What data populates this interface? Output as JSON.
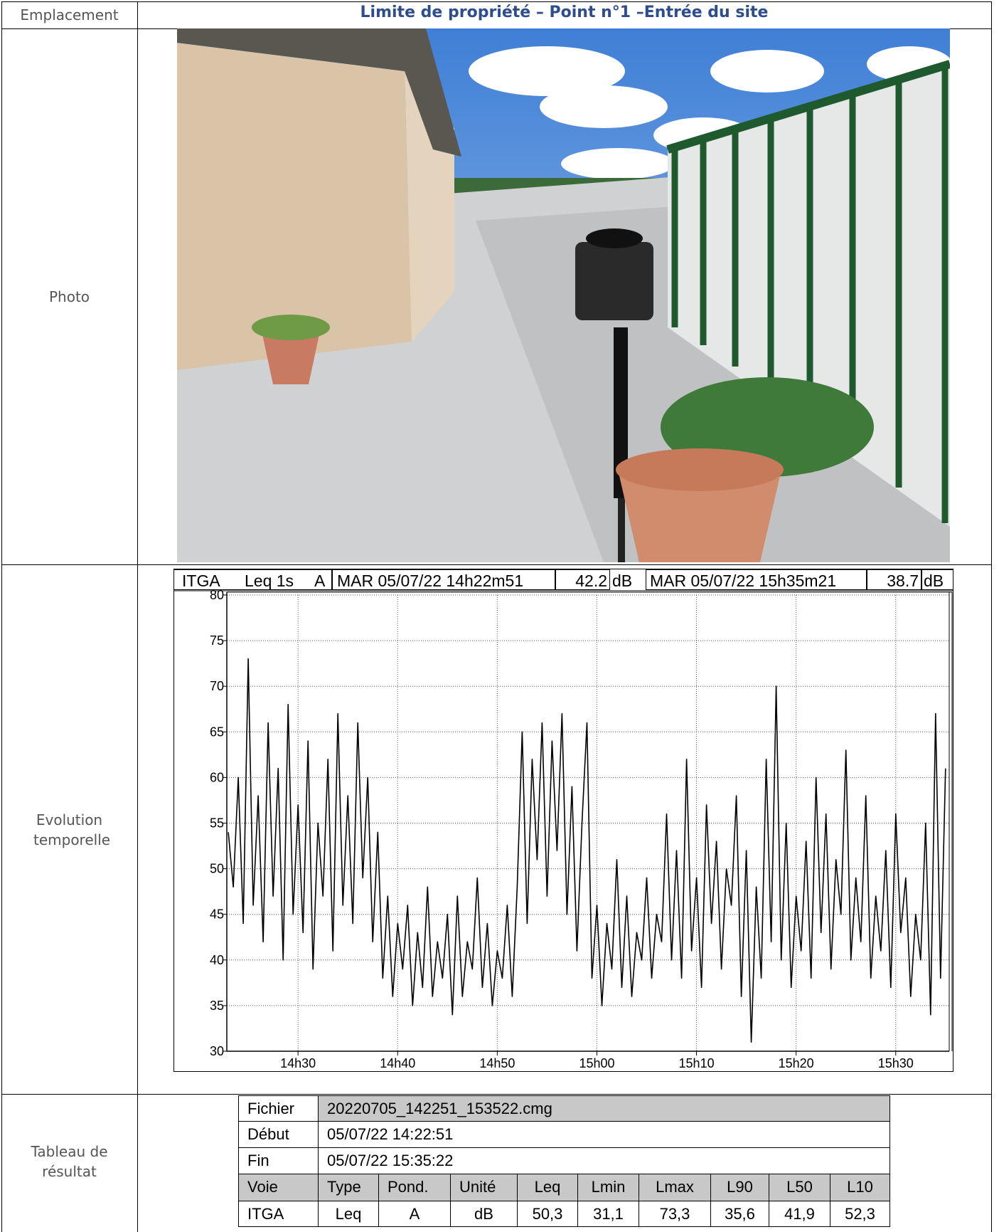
{
  "labels": {
    "location": "Emplacement",
    "photo": "Photo",
    "evolution": "Evolution temporelle",
    "results": "Tableau de résultat"
  },
  "title": "Limite de propriété – Point n°1 –Entrée du site",
  "chart_data": {
    "type": "line",
    "header": [
      "ITGA",
      "Leq 1s",
      "A",
      "MAR 05/07/22 14h22m51",
      "42.2",
      "dB",
      "MAR 05/07/22 15h35m21",
      "38.7",
      "dB"
    ],
    "color": "#000000",
    "xlim": [
      22.85,
      95.37
    ],
    "xticks": [
      {
        "value": 30,
        "label": "14h30"
      },
      {
        "value": 40,
        "label": "14h40"
      },
      {
        "value": 50,
        "label": "14h50"
      },
      {
        "value": 60,
        "label": "15h00"
      },
      {
        "value": 70,
        "label": "15h10"
      },
      {
        "value": 80,
        "label": "15h20"
      },
      {
        "value": 90,
        "label": "15h30"
      }
    ],
    "ylim": [
      30,
      80
    ],
    "yticks": [
      30,
      35,
      40,
      45,
      50,
      55,
      60,
      65,
      70,
      75,
      80
    ],
    "grid": true,
    "x": [
      23,
      23.5,
      24,
      24.5,
      25,
      25.5,
      26,
      26.5,
      27,
      27.5,
      28,
      28.5,
      29,
      29.5,
      30,
      30.5,
      31,
      31.5,
      32,
      32.5,
      33,
      33.5,
      34,
      34.5,
      35,
      35.5,
      36,
      36.5,
      37,
      37.5,
      38,
      38.5,
      39,
      39.5,
      40,
      40.5,
      41,
      41.5,
      42,
      42.5,
      43,
      43.5,
      44,
      44.5,
      45,
      45.5,
      46,
      46.5,
      47,
      47.5,
      48,
      48.5,
      49,
      49.5,
      50,
      50.5,
      51,
      51.5,
      52,
      52.5,
      53,
      53.5,
      54,
      54.5,
      55,
      55.5,
      56,
      56.5,
      57,
      57.5,
      58,
      58.5,
      59,
      59.5,
      60,
      60.5,
      61,
      61.5,
      62,
      62.5,
      63,
      63.5,
      64,
      64.5,
      65,
      65.5,
      66,
      66.5,
      67,
      67.5,
      68,
      68.5,
      69,
      69.5,
      70,
      70.5,
      71,
      71.5,
      72,
      72.5,
      73,
      73.5,
      74,
      74.5,
      75,
      75.5,
      76,
      76.5,
      77,
      77.5,
      78,
      78.5,
      79,
      79.5,
      80,
      80.5,
      81,
      81.5,
      82,
      82.5,
      83,
      83.5,
      84,
      84.5,
      85,
      85.5,
      86,
      86.5,
      87,
      87.5,
      88,
      88.5,
      89,
      89.5,
      90,
      90.5,
      91,
      91.5,
      92,
      92.5,
      93,
      93.5,
      94,
      94.5,
      95
    ],
    "values": [
      54,
      48,
      60,
      44,
      73,
      46,
      58,
      42,
      66,
      47,
      61,
      40,
      68,
      45,
      57,
      43,
      64,
      39,
      55,
      47,
      62,
      41,
      67,
      46,
      58,
      44,
      66,
      49,
      60,
      42,
      54,
      38,
      47,
      36,
      44,
      39,
      46,
      35,
      43,
      37,
      48,
      36,
      42,
      38,
      45,
      34,
      47,
      36,
      42,
      39,
      49,
      37,
      44,
      35,
      41,
      38,
      46,
      36,
      48,
      65,
      44,
      62,
      51,
      66,
      47,
      64,
      52,
      67,
      45,
      59,
      41,
      55,
      66,
      38,
      46,
      35,
      44,
      39,
      51,
      37,
      47,
      36,
      43,
      40,
      49,
      38,
      45,
      42,
      56,
      40,
      52,
      38,
      62,
      41,
      49,
      37,
      57,
      44,
      53,
      39,
      50,
      46,
      58,
      36,
      52,
      31,
      48,
      38,
      62,
      42,
      70,
      40,
      55,
      37,
      47,
      41,
      53,
      38,
      60,
      43,
      56,
      39,
      51,
      45,
      63,
      40,
      49,
      42,
      58,
      38,
      47,
      41,
      52,
      37,
      56,
      43,
      49,
      36,
      45,
      40,
      55,
      34,
      67,
      38,
      61
    ]
  },
  "table": {
    "info": [
      [
        "Fichier",
        "20220705_142251_153522.cmg"
      ],
      [
        "Début",
        "05/07/22 14:22:51"
      ],
      [
        "Fin",
        "05/07/22 15:35:22"
      ]
    ],
    "columns": [
      "Voie",
      "Type",
      "Pond.",
      "Unité",
      "Leq",
      "Lmin",
      "Lmax",
      "L90",
      "L50",
      "L10"
    ],
    "row": [
      "ITGA",
      "Leq",
      "A",
      "dB",
      "50,3",
      "31,1",
      "73,3",
      "35,6",
      "41,9",
      "52,3"
    ]
  }
}
